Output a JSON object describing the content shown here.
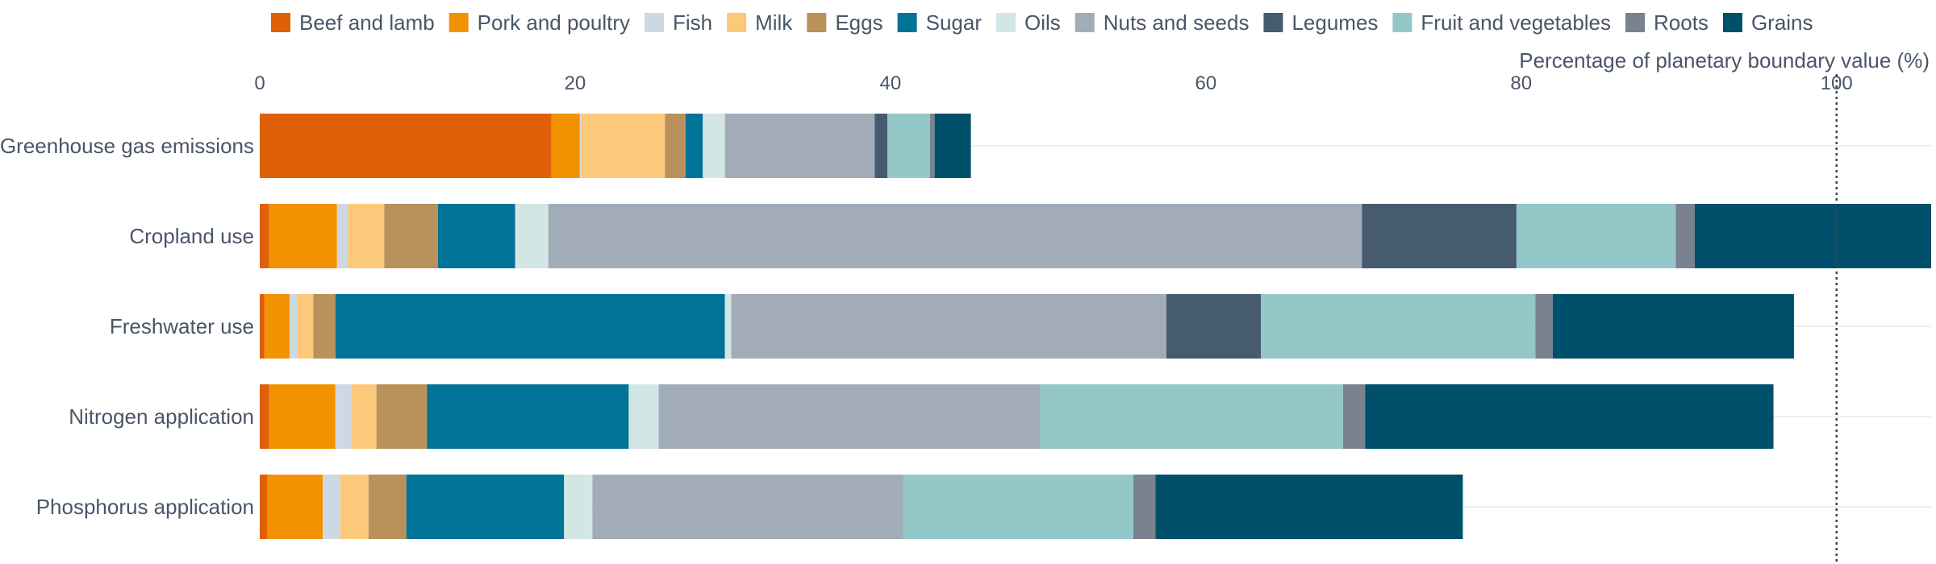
{
  "chart_data": {
    "type": "bar",
    "orientation": "horizontal",
    "stacked": true,
    "title": "",
    "xlabel": "Percentage of planetary boundary value (%)",
    "ylabel": "",
    "xlim": [
      0,
      106
    ],
    "x_ticks": [
      0,
      20,
      40,
      60,
      80,
      100
    ],
    "reference_line": {
      "x": 100,
      "style": "dotted"
    },
    "legend_position": "top",
    "grid": {
      "horizontal_row_lines": true,
      "vertical": false
    },
    "categories": [
      "Greenhouse gas emissions",
      "Cropland use",
      "Freshwater use",
      "Nitrogen application",
      "Phosphorus application"
    ],
    "series": [
      {
        "name": "Beef and lamb",
        "color": "#e0600a",
        "values": [
          18.5,
          0.6,
          0.3,
          0.6,
          0.5
        ]
      },
      {
        "name": "Pork and poultry",
        "color": "#f39200",
        "values": [
          1.8,
          4.3,
          1.6,
          4.2,
          3.5
        ]
      },
      {
        "name": "Fish",
        "color": "#cdd8e3",
        "values": [
          0.1,
          0.7,
          0.5,
          1.0,
          1.1
        ]
      },
      {
        "name": "Milk",
        "color": "#fcc97a",
        "values": [
          5.3,
          2.3,
          1.0,
          1.6,
          1.8
        ]
      },
      {
        "name": "Eggs",
        "color": "#b8925a",
        "values": [
          1.3,
          3.4,
          1.4,
          3.2,
          2.4
        ]
      },
      {
        "name": "Sugar",
        "color": "#007396",
        "values": [
          1.1,
          4.9,
          24.7,
          12.8,
          10.0
        ]
      },
      {
        "name": "Oils",
        "color": "#d3e6e6",
        "values": [
          1.4,
          2.1,
          0.4,
          1.9,
          1.8
        ]
      },
      {
        "name": "Nuts and seeds",
        "color": "#a1acb8",
        "values": [
          9.5,
          51.6,
          27.6,
          24.2,
          19.7
        ]
      },
      {
        "name": "Legumes",
        "color": "#475b6e",
        "values": [
          0.8,
          9.8,
          6.0,
          0.0,
          0.0
        ]
      },
      {
        "name": "Fruit and vegetables",
        "color": "#94c8c8",
        "values": [
          2.7,
          10.1,
          17.4,
          19.2,
          14.6
        ]
      },
      {
        "name": "Roots",
        "color": "#7a8290",
        "values": [
          0.3,
          1.2,
          1.1,
          1.4,
          1.4
        ]
      },
      {
        "name": "Grains",
        "color": "#00506b",
        "values": [
          2.3,
          15.2,
          15.3,
          25.9,
          19.5
        ]
      }
    ]
  }
}
